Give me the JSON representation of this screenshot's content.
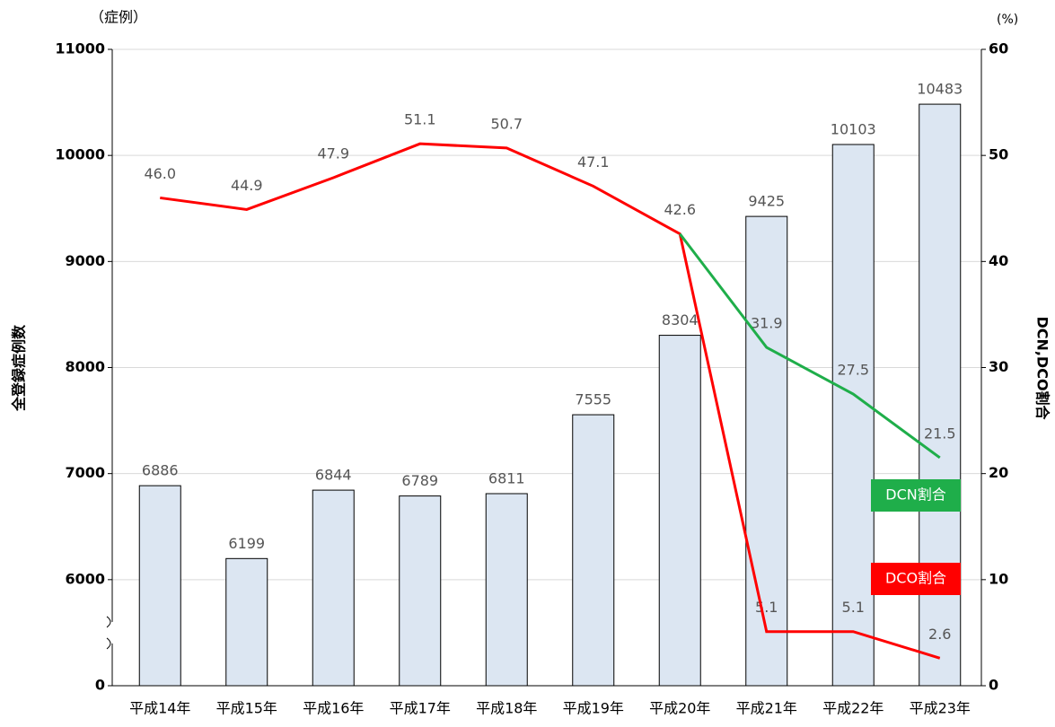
{
  "chart_data": {
    "type": "bar",
    "unit_left": "（症例）",
    "unit_right": "(%)",
    "ylabel": "全登録症例数",
    "y2label": "DCN,DCO割合",
    "categories": [
      "平成14年",
      "平成15年",
      "平成16年",
      "平成17年",
      "平成18年",
      "平成19年",
      "平成20年",
      "平成21年",
      "平成22年",
      "平成23年"
    ],
    "values": [
      6886,
      6199,
      6844,
      6789,
      6811,
      7555,
      8304,
      9425,
      10103,
      10483
    ],
    "color": "#dce6f2",
    "ylim": [
      0,
      11000
    ],
    "yticks": [
      0,
      6000,
      7000,
      8000,
      9000,
      10000,
      11000
    ],
    "axis_break": true,
    "y2lim": [
      0,
      60
    ],
    "y2ticks": [
      0,
      10,
      20,
      30,
      40,
      50,
      60
    ],
    "grid": true,
    "series": [
      {
        "name": "DCO割合",
        "color": "#ff0000",
        "axis": "y2",
        "values": [
          46.0,
          44.9,
          47.9,
          51.1,
          50.7,
          47.1,
          42.6,
          5.1,
          5.1,
          2.6
        ],
        "value_labels": [
          "46.0",
          "44.9",
          "47.9",
          "51.1",
          "50.7",
          "47.1",
          "42.6",
          "5.1",
          "5.1",
          "2.6"
        ]
      },
      {
        "name": "DCN割合",
        "color": "#1fae4a",
        "axis": "y2",
        "values": [
          null,
          null,
          null,
          null,
          null,
          null,
          42.6,
          31.9,
          27.5,
          21.5
        ],
        "value_labels": [
          null,
          null,
          null,
          null,
          null,
          null,
          null,
          "31.9",
          "27.5",
          "21.5"
        ]
      }
    ]
  }
}
